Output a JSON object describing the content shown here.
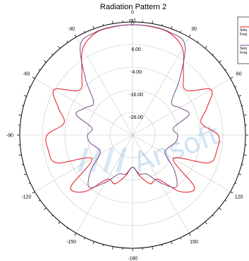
{
  "chart_data": {
    "type": "polar",
    "title": "Radiation Pattern 2",
    "angle_ticks": [
      "0",
      "30",
      "60",
      "90",
      "120",
      "150",
      "-180",
      "-150",
      "-120",
      "-90",
      "-60",
      "-30"
    ],
    "radial_ticks": [
      "8.00",
      "-4.00",
      "-16.00",
      "-28.00"
    ],
    "rlim": [
      -40,
      20
    ],
    "grid": true,
    "legend_location": "top-right",
    "legend_labels": [
      "Setu",
      "Freq",
      "Setu",
      "Freq"
    ],
    "series": [
      {
        "color": "#e8141c",
        "theta": [
          0,
          10,
          20,
          30,
          40,
          50,
          60,
          70,
          80,
          90,
          100,
          110,
          120,
          130,
          140,
          150,
          160,
          170,
          180,
          190,
          200,
          210,
          220,
          230,
          240,
          250,
          260,
          270,
          280,
          290,
          300,
          310,
          320,
          330,
          340,
          350
        ],
        "r": [
          18.5,
          18.3,
          17.6,
          13,
          2,
          -3,
          8.2,
          2,
          -3,
          5.5,
          5.5,
          3,
          -15,
          3,
          -1,
          -13,
          -12.5,
          -18,
          -23,
          -18,
          -12.5,
          -13,
          -1,
          3,
          -15,
          3,
          5.5,
          5.5,
          -3,
          2,
          8.2,
          -3,
          2,
          13,
          17.6,
          18.3
        ]
      },
      {
        "color": "#7a4b8c",
        "theta": [
          0,
          10,
          20,
          30,
          40,
          50,
          60,
          70,
          80,
          90,
          100,
          110,
          120,
          130,
          140,
          150,
          160,
          170,
          180,
          190,
          200,
          210,
          220,
          230,
          240,
          250,
          260,
          270,
          280,
          290,
          300,
          310,
          320,
          330,
          340,
          350
        ],
        "r": [
          18.5,
          18.5,
          18,
          15.5,
          -1,
          -13,
          -11,
          -8,
          -18,
          -16,
          -17,
          -20,
          -20,
          -11,
          -4,
          -11,
          -18,
          -19,
          -23,
          -19,
          -18,
          -11,
          -4,
          -11,
          -20,
          -20,
          -17,
          -16,
          -18,
          -8,
          -11,
          -13,
          -1,
          15.5,
          18,
          18.5
        ]
      }
    ]
  },
  "colors": {
    "grid": "#c8c8c8",
    "axis": "#000000",
    "watermark": "#7fb2e6"
  },
  "watermark_text": "Ansoft"
}
